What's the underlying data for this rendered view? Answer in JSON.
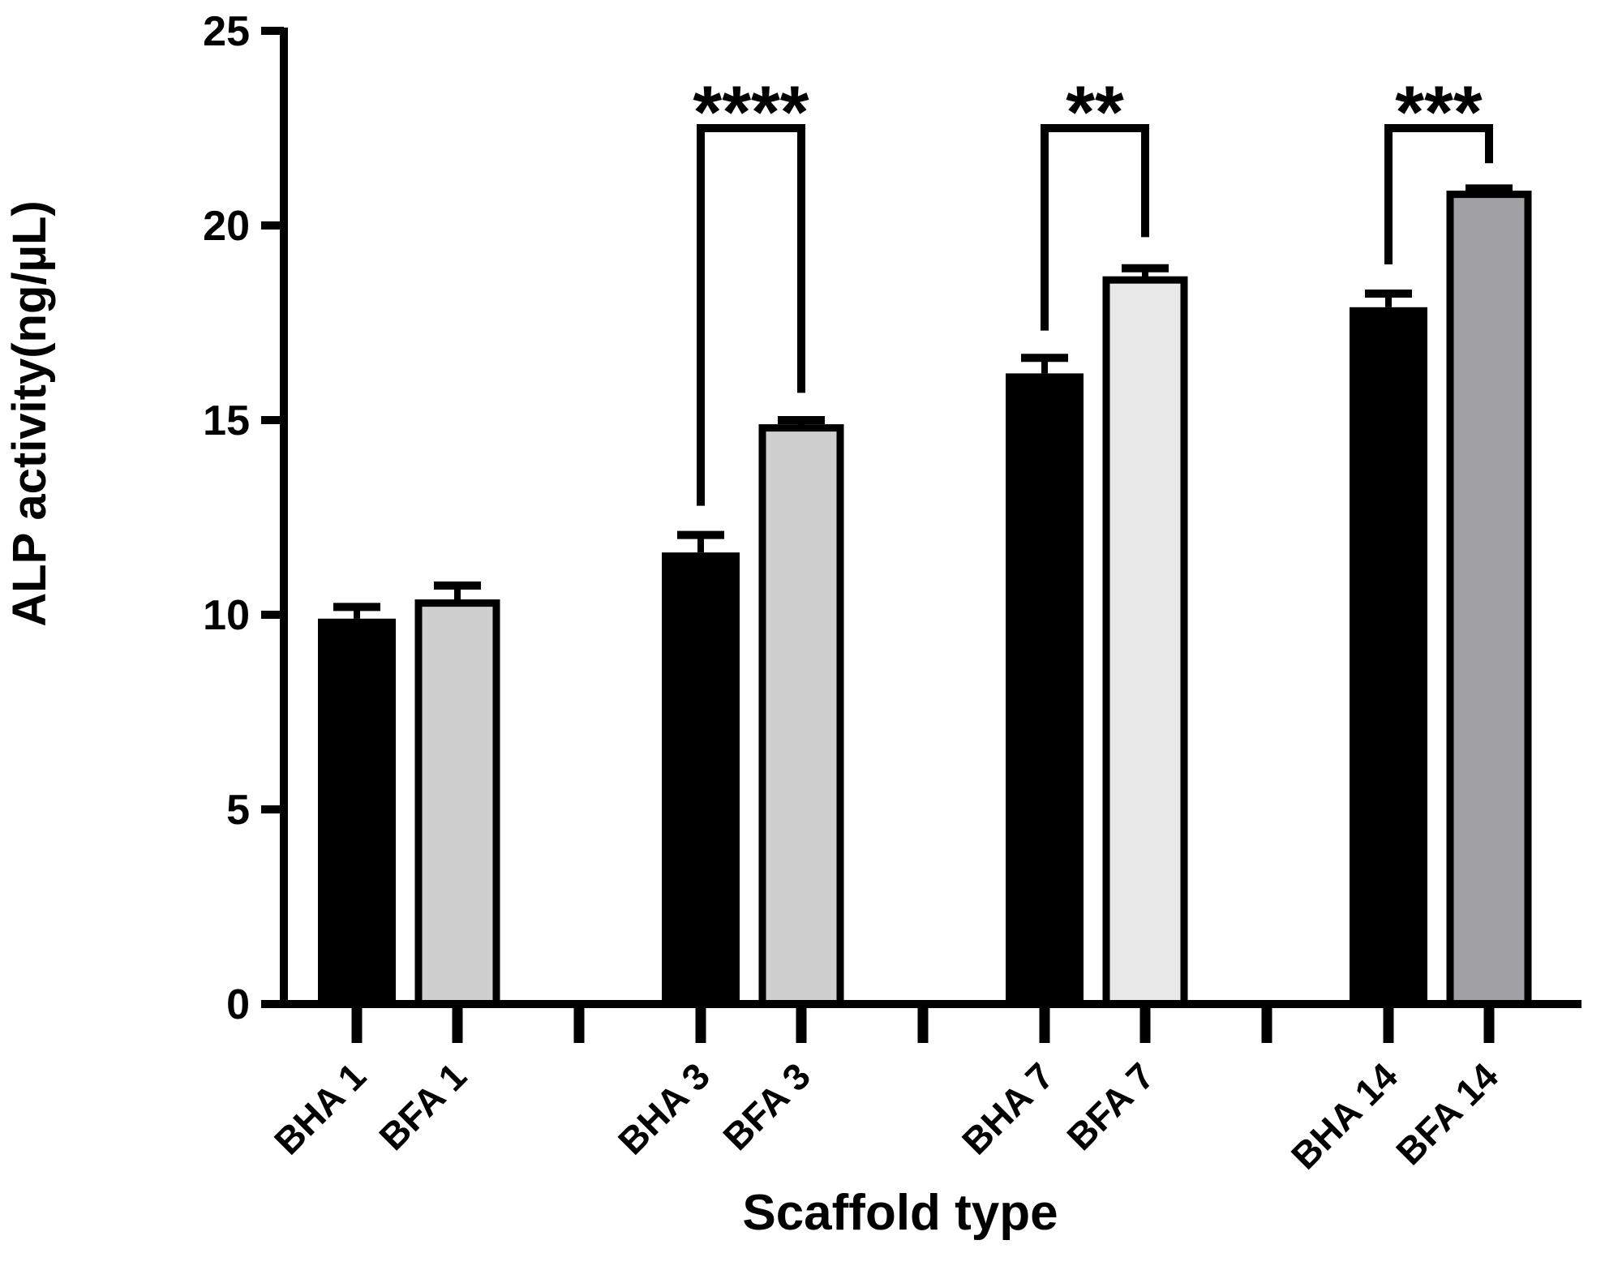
{
  "chart_data": {
    "type": "bar",
    "title": "",
    "xlabel": "Scaffold type",
    "ylabel": "ALP activity(ng/µL)",
    "ylim": [
      0,
      25
    ],
    "ytick_step": 5,
    "ytick_labels": [
      "0",
      "5",
      "10",
      "15",
      "20",
      "25"
    ],
    "grid": false,
    "legend": "none",
    "categories": [
      "BHA 1",
      "BFA 1",
      "BHA 3",
      "BFA 3",
      "BHA 7",
      "BFA 7",
      "BHA 14",
      "BFA 14"
    ],
    "bars": [
      {
        "label": "BHA 1",
        "value": 9.9,
        "error": 0.3,
        "fill": "#000000",
        "border": "#000000"
      },
      {
        "label": "BFA 1",
        "value": 10.3,
        "error": 0.45,
        "fill": "#cfcfcf",
        "border": "#000000"
      },
      {
        "label": "BHA 3",
        "value": 11.6,
        "error": 0.45,
        "fill": "#000000",
        "border": "#000000"
      },
      {
        "label": "BFA 3",
        "value": 14.8,
        "error": 0.2,
        "fill": "#cfcfcf",
        "border": "#000000"
      },
      {
        "label": "BHA 7",
        "value": 16.2,
        "error": 0.4,
        "fill": "#000000",
        "border": "#000000"
      },
      {
        "label": "BFA 7",
        "value": 18.6,
        "error": 0.3,
        "fill": "#e9e9e9",
        "border": "#000000"
      },
      {
        "label": "BHA 14",
        "value": 17.9,
        "error": 0.35,
        "fill": "#000000",
        "border": "#000000"
      },
      {
        "label": "BFA 14",
        "value": 20.8,
        "error": 0.15,
        "fill": "#a1a1a5",
        "border": "#000000"
      }
    ],
    "significance": [
      {
        "stars": "****",
        "left_category": "BHA 3",
        "right_category": "BFA 3",
        "left_arm_down_to": 12.8,
        "right_arm_down_to": 15.7
      },
      {
        "stars": "**",
        "left_category": "BHA 7",
        "right_category": "BFA 7",
        "left_arm_down_to": 17.3,
        "right_arm_down_to": 19.7
      },
      {
        "stars": "***",
        "left_category": "BHA 14",
        "right_category": "BFA 14",
        "left_arm_down_to": 19.0,
        "right_arm_down_to": 21.6
      }
    ],
    "axis_color": "#000000"
  }
}
